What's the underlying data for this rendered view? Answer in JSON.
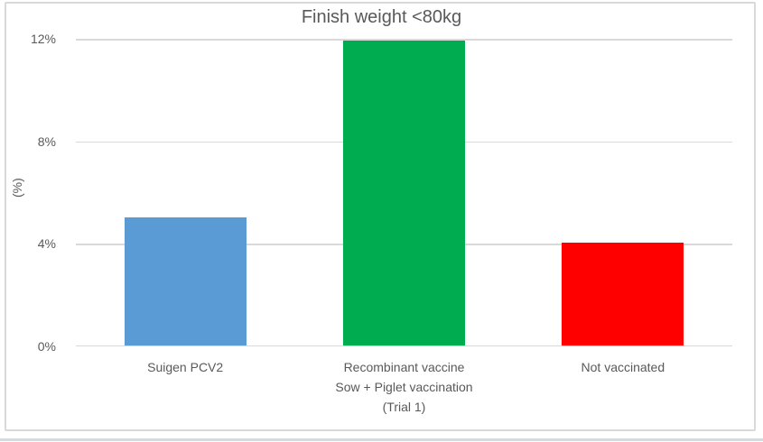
{
  "chart_data": {
    "type": "bar",
    "title": "Finish weight <80kg",
    "xlabel": "",
    "ylabel": "(%)",
    "categories": [
      "Suigen PCV2",
      "Recombinant vaccine\nSow + Piglet vaccination\n(Trial 1)",
      "Not vaccinated"
    ],
    "values": [
      5,
      11.9,
      4
    ],
    "colors": [
      "#5B9BD5",
      "#00AC50",
      "#FF0000"
    ],
    "ylim": [
      0,
      12
    ],
    "yticks": [
      0,
      4,
      8,
      12
    ],
    "ytick_labels": [
      "0%",
      "4%",
      "8%",
      "12%"
    ],
    "grid": true,
    "legend": false,
    "gridline_color": "#D9D9D9",
    "text_color": "#595959"
  }
}
